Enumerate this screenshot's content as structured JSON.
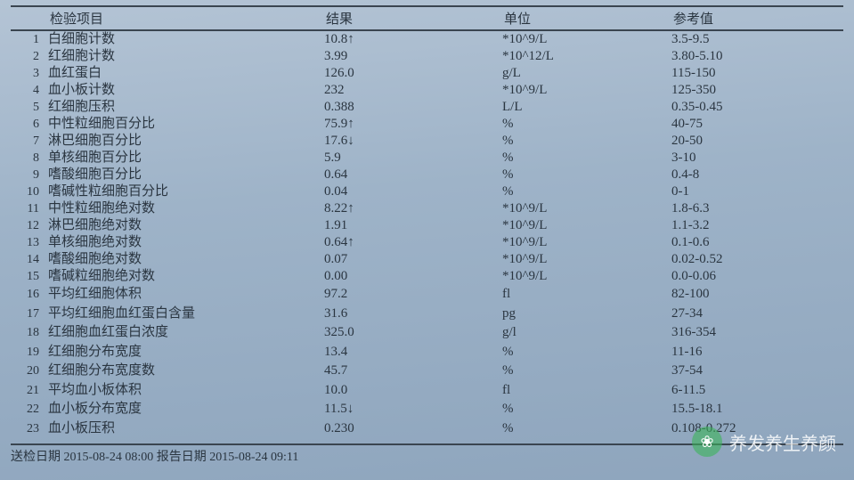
{
  "header": {
    "name": "检验项目",
    "result": "结果",
    "unit": "单位",
    "ref": "参考值"
  },
  "rows": [
    {
      "n": "1",
      "name": "白细胞计数",
      "result": "10.8",
      "flag": "↑",
      "unit": "*10^9/L",
      "ref": "3.5-9.5"
    },
    {
      "n": "2",
      "name": "红细胞计数",
      "result": "3.99",
      "flag": "",
      "unit": "*10^12/L",
      "ref": "3.80-5.10"
    },
    {
      "n": "3",
      "name": "血红蛋白",
      "result": "126.0",
      "flag": "",
      "unit": "g/L",
      "ref": "115-150"
    },
    {
      "n": "4",
      "name": "血小板计数",
      "result": "232",
      "flag": "",
      "unit": "*10^9/L",
      "ref": "125-350"
    },
    {
      "n": "5",
      "name": "红细胞压积",
      "result": "0.388",
      "flag": "",
      "unit": "L/L",
      "ref": "0.35-0.45"
    },
    {
      "n": "6",
      "name": "中性粒细胞百分比",
      "result": "75.9",
      "flag": "↑",
      "unit": "%",
      "ref": "40-75"
    },
    {
      "n": "7",
      "name": "淋巴细胞百分比",
      "result": "17.6",
      "flag": "↓",
      "unit": "%",
      "ref": "20-50"
    },
    {
      "n": "8",
      "name": "单核细胞百分比",
      "result": "5.9",
      "flag": "",
      "unit": "%",
      "ref": "3-10"
    },
    {
      "n": "9",
      "name": "嗜酸细胞百分比",
      "result": "0.64",
      "flag": "",
      "unit": "%",
      "ref": "0.4-8"
    },
    {
      "n": "10",
      "name": "嗜碱性粒细胞百分比",
      "result": "0.04",
      "flag": "",
      "unit": "%",
      "ref": "0-1"
    },
    {
      "n": "11",
      "name": "中性粒细胞绝对数",
      "result": "8.22",
      "flag": "↑",
      "unit": "*10^9/L",
      "ref": "1.8-6.3"
    },
    {
      "n": "12",
      "name": "淋巴细胞绝对数",
      "result": "1.91",
      "flag": "",
      "unit": "*10^9/L",
      "ref": "1.1-3.2"
    },
    {
      "n": "13",
      "name": "单核细胞绝对数",
      "result": "0.64",
      "flag": "↑",
      "unit": "*10^9/L",
      "ref": "0.1-0.6"
    },
    {
      "n": "14",
      "name": "嗜酸细胞绝对数",
      "result": "0.07",
      "flag": "",
      "unit": "*10^9/L",
      "ref": "0.02-0.52"
    },
    {
      "n": "15",
      "name": "嗜碱粒细胞绝对数",
      "result": "0.00",
      "flag": "",
      "unit": "*10^9/L",
      "ref": "0.0-0.06"
    },
    {
      "n": "16",
      "name": "平均红细胞体积",
      "result": "97.2",
      "flag": "",
      "unit": "fl",
      "ref": "82-100"
    },
    {
      "n": "17",
      "name": "平均红细胞血红蛋白含量",
      "result": "31.6",
      "flag": "",
      "unit": "pg",
      "ref": "27-34"
    },
    {
      "n": "18",
      "name": "红细胞血红蛋白浓度",
      "result": "325.0",
      "flag": "",
      "unit": "g/l",
      "ref": "316-354"
    },
    {
      "n": "19",
      "name": "红细胞分布宽度",
      "result": "13.4",
      "flag": "",
      "unit": "%",
      "ref": "11-16"
    },
    {
      "n": "20",
      "name": "红细胞分布宽度数",
      "result": "45.7",
      "flag": "",
      "unit": "%",
      "ref": "37-54"
    },
    {
      "n": "21",
      "name": "平均血小板体积",
      "result": "10.0",
      "flag": "",
      "unit": "fl",
      "ref": "6-11.5"
    },
    {
      "n": "22",
      "name": "血小板分布宽度",
      "result": "11.5",
      "flag": "↓",
      "unit": "%",
      "ref": "15.5-18.1"
    },
    {
      "n": "23",
      "name": "血小板压积",
      "result": "0.230",
      "flag": "",
      "unit": "%",
      "ref": "0.108-0.272"
    }
  ],
  "footer": "送检日期 2015-08-24 08:00  报告日期  2015-08-24 09:11",
  "watermark": "养发养生养颜"
}
